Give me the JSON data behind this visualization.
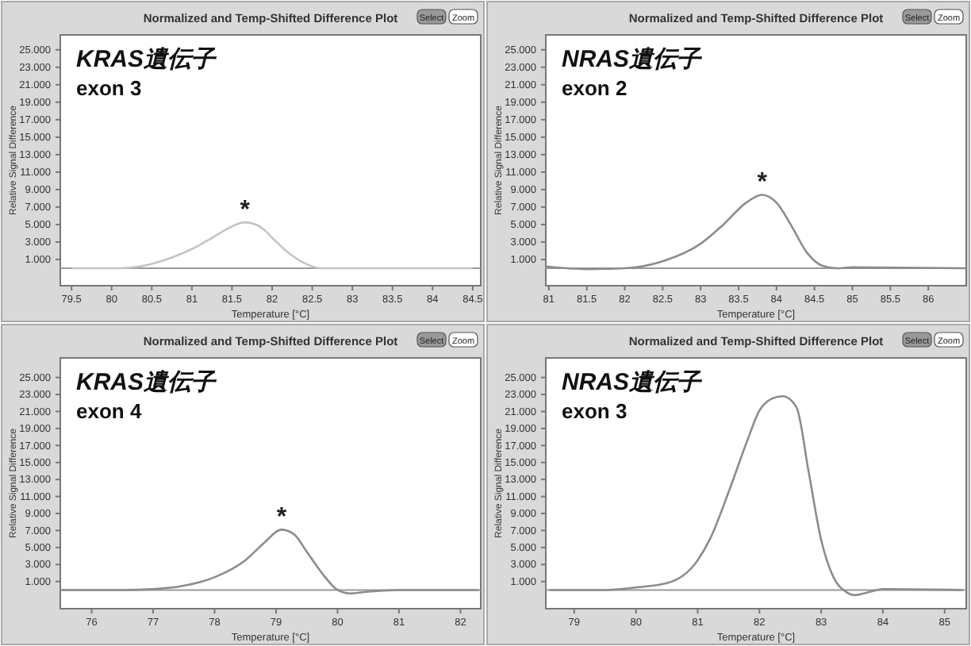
{
  "chart_data": [
    {
      "type": "line",
      "title": "Normalized and Temp-Shifted Difference Plot",
      "xlabel": "Temperature [°C]",
      "ylabel": "Relative Signal Difference",
      "annotations": [
        "KRAS遺伝子",
        "exon 3",
        {
          "text": "*",
          "x": 81.66,
          "y": 5.25
        },
        "Select",
        "Zoom"
      ],
      "xlim": [
        79.36,
        84.6
      ],
      "xticks": [
        79.5,
        80,
        80.5,
        81,
        81.5,
        82,
        82.5,
        83,
        83.5,
        84,
        84.5
      ],
      "ylim": [
        -2,
        26.7
      ],
      "yticks": [
        {
          "value": 1,
          "label": "1.000"
        },
        {
          "value": 3,
          "label": "3.000"
        },
        {
          "value": 5,
          "label": "5.000"
        },
        {
          "value": 7,
          "label": "7.000"
        },
        {
          "value": 9,
          "label": "9.000"
        },
        {
          "value": 11,
          "label": "11.000"
        },
        {
          "value": 13,
          "label": "13.000"
        },
        {
          "value": 15,
          "label": "15.000"
        },
        {
          "value": 17,
          "label": "17.000"
        },
        {
          "value": 19,
          "label": "19.000"
        },
        {
          "value": 21,
          "label": "21.000"
        },
        {
          "value": 23,
          "label": "23.000"
        },
        {
          "value": 25,
          "label": "25.000"
        }
      ],
      "ref_lines": [
        {
          "axis": "y",
          "value": 0,
          "color": "#999999"
        }
      ],
      "series": [
        {
          "color": "#c4c4c4",
          "x": [
            79.5,
            80,
            80.2,
            80.5,
            80.8,
            81,
            81.2,
            81.4,
            81.55,
            81.66,
            81.8,
            81.9,
            82,
            82.2,
            82.4,
            82.6,
            83,
            84.5
          ],
          "values": [
            0,
            0,
            0.05,
            0.5,
            1.4,
            2.2,
            3.2,
            4.3,
            5.0,
            5.25,
            5.0,
            4.4,
            3.5,
            1.8,
            0.6,
            0,
            0,
            0
          ]
        }
      ]
    },
    {
      "type": "line",
      "title": "Normalized and Temp-Shifted Difference Plot",
      "xlabel": "Temperature [°C]",
      "ylabel": "Relative Signal Difference",
      "annotations": [
        "NRAS遺伝子",
        "exon 2",
        {
          "text": "*",
          "x": 83.81,
          "y": 8.4
        },
        "Select",
        "Zoom"
      ],
      "xlim": [
        80.96,
        86.5
      ],
      "xticks": [
        81,
        81.5,
        82,
        82.5,
        83,
        83.5,
        84,
        84.5,
        85,
        85.5,
        86
      ],
      "ylim": [
        -2,
        26.7
      ],
      "yticks": [
        {
          "value": 1,
          "label": "1.000"
        },
        {
          "value": 3,
          "label": "3.000"
        },
        {
          "value": 5,
          "label": "5.000"
        },
        {
          "value": 7,
          "label": "7.000"
        },
        {
          "value": 9,
          "label": "9.000"
        },
        {
          "value": 11,
          "label": "11.000"
        },
        {
          "value": 13,
          "label": "13.000"
        },
        {
          "value": 15,
          "label": "15.000"
        },
        {
          "value": 17,
          "label": "17.000"
        },
        {
          "value": 19,
          "label": "19.000"
        },
        {
          "value": 21,
          "label": "21.000"
        },
        {
          "value": 23,
          "label": "23.000"
        },
        {
          "value": 25,
          "label": "25.000"
        }
      ],
      "ref_lines": [
        {
          "axis": "y",
          "value": 0,
          "color": "#999999"
        }
      ],
      "series": [
        {
          "color": "#8c8c8c",
          "x": [
            80.96,
            81.5,
            82,
            82.5,
            83,
            83.3,
            83.6,
            83.81,
            84,
            84.2,
            84.4,
            84.6,
            84.8,
            85,
            86.5
          ],
          "values": [
            0.2,
            -0.1,
            0,
            0.8,
            2.8,
            5.0,
            7.5,
            8.4,
            7.5,
            4.8,
            1.8,
            0.3,
            0,
            0.1,
            0
          ]
        }
      ]
    },
    {
      "type": "line",
      "title": "Normalized and Temp-Shifted Difference Plot",
      "xlabel": "Temperature [°C]",
      "ylabel": "Relative Signal Difference",
      "annotations": [
        "KRAS遺伝子",
        "exon 4",
        {
          "text": "*",
          "x": 79.09,
          "y": 7.1
        },
        "Select",
        "Zoom"
      ],
      "xlim": [
        75.49,
        82.33
      ],
      "xticks": [
        76,
        77,
        78,
        79,
        80,
        81,
        82
      ],
      "ylim": [
        -2.2,
        27.3
      ],
      "yticks": [
        {
          "value": 1,
          "label": "1.000"
        },
        {
          "value": 3,
          "label": "3.000"
        },
        {
          "value": 5,
          "label": "5.000"
        },
        {
          "value": 7,
          "label": "7.000"
        },
        {
          "value": 9,
          "label": "9.000"
        },
        {
          "value": 11,
          "label": "11.000"
        },
        {
          "value": 13,
          "label": "13.000"
        },
        {
          "value": 15,
          "label": "15.000"
        },
        {
          "value": 17,
          "label": "17.000"
        },
        {
          "value": 19,
          "label": "19.000"
        },
        {
          "value": 21,
          "label": "21.000"
        },
        {
          "value": 23,
          "label": "23.000"
        },
        {
          "value": 25,
          "label": "25.000"
        }
      ],
      "ref_lines": [
        {
          "axis": "y",
          "value": 0,
          "color": "#999999"
        }
      ],
      "series": [
        {
          "color": "#8c8c8c",
          "x": [
            75.5,
            76.5,
            77,
            77.5,
            78,
            78.5,
            78.8,
            79.09,
            79.3,
            79.5,
            79.8,
            80,
            80.2,
            80.5,
            81,
            82.3
          ],
          "values": [
            0,
            0,
            0.1,
            0.5,
            1.5,
            3.5,
            5.5,
            7.1,
            6.5,
            4.5,
            1.5,
            0,
            -0.4,
            -0.2,
            0,
            0
          ]
        }
      ]
    },
    {
      "type": "line",
      "title": "Normalized and Temp-Shifted Difference Plot",
      "xlabel": "Temperature [°C]",
      "ylabel": "Relative Signal Difference",
      "annotations": [
        "NRAS遺伝子",
        "exon 3",
        "Select",
        "Zoom"
      ],
      "xlim": [
        78.54,
        85.35
      ],
      "xticks": [
        79,
        80,
        81,
        82,
        83,
        84,
        85
      ],
      "ylim": [
        -2.2,
        27.3
      ],
      "yticks": [
        {
          "value": 1,
          "label": "1.000"
        },
        {
          "value": 3,
          "label": "3.000"
        },
        {
          "value": 5,
          "label": "5.000"
        },
        {
          "value": 7,
          "label": "7.000"
        },
        {
          "value": 9,
          "label": "9.000"
        },
        {
          "value": 11,
          "label": "11.000"
        },
        {
          "value": 13,
          "label": "13.000"
        },
        {
          "value": 15,
          "label": "15.000"
        },
        {
          "value": 17,
          "label": "17.000"
        },
        {
          "value": 19,
          "label": "19.000"
        },
        {
          "value": 21,
          "label": "21.000"
        },
        {
          "value": 23,
          "label": "23.000"
        },
        {
          "value": 25,
          "label": "25.000"
        }
      ],
      "ref_lines": [
        {
          "axis": "y",
          "value": 0,
          "color": "#999999"
        }
      ],
      "series": [
        {
          "color": "#8c8c8c",
          "x": [
            78.6,
            79.5,
            80,
            80.5,
            81,
            81.2,
            81.5,
            81.8,
            82,
            82.2,
            82.38,
            82.6,
            82.8,
            83,
            83.2,
            83.4,
            83.55,
            83.8,
            84,
            85.3
          ],
          "values": [
            0,
            0,
            0.3,
            0.8,
            3.5,
            6,
            11.5,
            17.5,
            21.1,
            22.5,
            22.8,
            21.5,
            13.8,
            5.9,
            1.5,
            -0.2,
            -0.6,
            -0.2,
            0.1,
            0
          ]
        }
      ]
    }
  ]
}
